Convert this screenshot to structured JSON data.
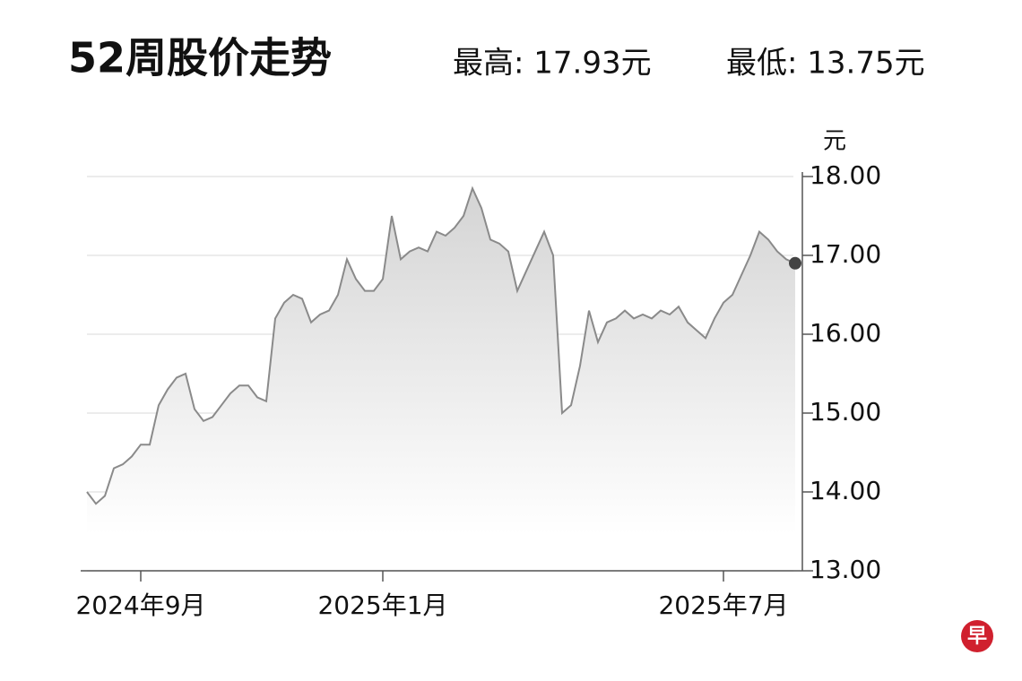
{
  "chart_data": {
    "type": "area",
    "title": "52周股价走势",
    "high_label": "最高: 17.93元",
    "low_label": "最低: 13.75元",
    "y_unit": "元",
    "logo": "早",
    "categories": [
      null,
      null,
      null,
      null,
      null,
      null,
      "2024年9月",
      null,
      null,
      null,
      null,
      null,
      null,
      null,
      null,
      null,
      null,
      null,
      null,
      null,
      null,
      null,
      null,
      null,
      null,
      null,
      null,
      null,
      null,
      null,
      null,
      null,
      null,
      "2025年1月",
      null,
      null,
      null,
      null,
      null,
      null,
      null,
      null,
      null,
      null,
      null,
      null,
      null,
      null,
      null,
      null,
      null,
      null,
      null,
      null,
      null,
      null,
      null,
      null,
      null,
      null,
      null,
      null,
      null,
      null,
      null,
      null,
      null,
      null,
      null,
      null,
      null,
      "2025年7月",
      null,
      null,
      null,
      null,
      null,
      null,
      null,
      null
    ],
    "series": [
      {
        "name": null,
        "color": "#8a8a8a",
        "values": [
          14.0,
          13.85,
          13.95,
          14.3,
          14.35,
          14.45,
          14.6,
          14.6,
          15.1,
          15.3,
          15.45,
          15.5,
          15.05,
          14.9,
          14.95,
          15.1,
          15.25,
          15.35,
          15.35,
          15.2,
          15.15,
          16.2,
          16.4,
          16.5,
          16.45,
          16.15,
          16.25,
          16.3,
          16.5,
          16.95,
          16.7,
          16.55,
          16.55,
          16.7,
          17.5,
          16.95,
          17.05,
          17.1,
          17.05,
          17.3,
          17.25,
          17.35,
          17.5,
          17.85,
          17.6,
          17.2,
          17.15,
          17.05,
          16.55,
          16.8,
          17.05,
          17.3,
          17.0,
          15.0,
          15.1,
          15.6,
          16.3,
          15.9,
          16.15,
          16.2,
          16.3,
          16.2,
          16.25,
          16.2,
          16.3,
          16.25,
          16.35,
          16.15,
          16.05,
          15.95,
          16.2,
          16.4,
          16.5,
          16.75,
          17.0,
          17.3,
          17.2,
          17.05,
          16.95,
          16.9
        ]
      }
    ],
    "ylim": [
      13,
      18
    ],
    "yticks": [
      {
        "value": 13,
        "label": "13.00"
      },
      {
        "value": 14,
        "label": "14.00"
      },
      {
        "value": 15,
        "label": "15.00"
      },
      {
        "value": 16,
        "label": "16.00"
      },
      {
        "value": 17,
        "label": "17.00"
      },
      {
        "value": 18,
        "label": "18.00"
      }
    ],
    "grid": true,
    "end_marker_color": "#444444"
  }
}
